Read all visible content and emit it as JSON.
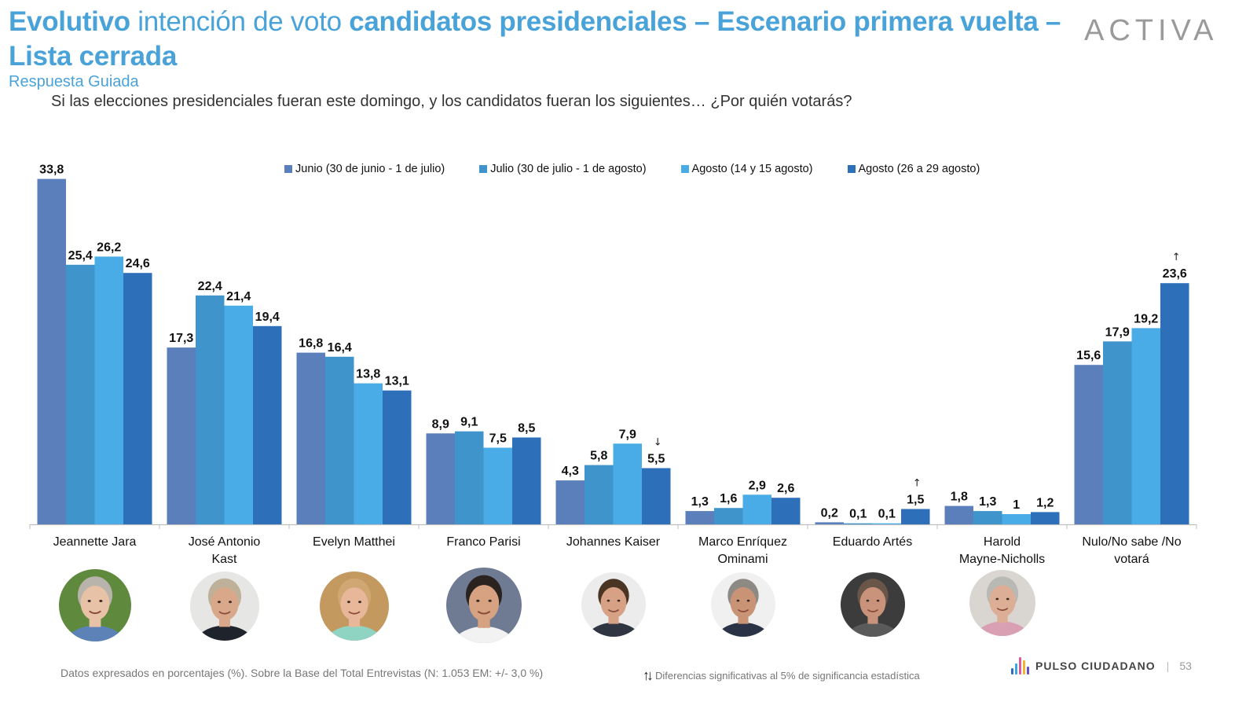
{
  "header": {
    "title_parts": [
      {
        "text": "Evolutivo",
        "bold": true
      },
      {
        "text": " intención de voto ",
        "bold": false
      },
      {
        "text": "candidatos presidenciales – Escenario primera vuelta – Lista cerrada",
        "bold": true
      }
    ],
    "subtitle": "Respuesta Guiada",
    "question": "Si las elecciones presidenciales fueran este domingo, y los candidatos fueran los siguientes… ¿Por quién votarás?",
    "logo": "ACTIVA"
  },
  "chart_data": {
    "type": "bar",
    "title": "Evolutivo intención de voto candidatos presidenciales – Escenario primera vuelta – Lista cerrada",
    "xlabel": "",
    "ylabel": "",
    "ylim": [
      0,
      34
    ],
    "grid": false,
    "legend_position": "top",
    "categories": [
      "Jeannette Jara",
      "José Antonio Kast",
      "Evelyn Matthei",
      "Franco Parisi",
      "Johannes Kaiser",
      "Marco Enríquez Ominami",
      "Eduardo Artés",
      "Harold Mayne-Nicholls",
      "Nulo/No sabe /No votará"
    ],
    "category_lines": [
      [
        "Jeannette Jara"
      ],
      [
        "José Antonio",
        "Kast"
      ],
      [
        "Evelyn Matthei"
      ],
      [
        "Franco Parisi"
      ],
      [
        "Johannes Kaiser"
      ],
      [
        "Marco Enríquez",
        "Ominami"
      ],
      [
        "Eduardo Artés"
      ],
      [
        "Harold",
        "Mayne-Nicholls"
      ],
      [
        "Nulo/No sabe /No",
        "votará"
      ]
    ],
    "series": [
      {
        "name": "Junio (30 de junio - 1 de julio)",
        "color": "#5a7fba",
        "values": [
          33.8,
          17.3,
          16.8,
          8.9,
          4.3,
          1.3,
          0.2,
          1.8,
          15.6
        ],
        "labels": [
          "33,8",
          "17,3",
          "16,8",
          "8,9",
          "4,3",
          "1,3",
          "0,2",
          "1,8",
          "15,6"
        ]
      },
      {
        "name": "Julio (30 de julio - 1 de agosto)",
        "color": "#3f94cc",
        "values": [
          25.4,
          22.4,
          16.4,
          9.1,
          5.8,
          1.6,
          0.1,
          1.3,
          17.9
        ],
        "labels": [
          "25,4",
          "22,4",
          "16,4",
          "9,1",
          "5,8",
          "1,6",
          "0,1",
          "1,3",
          "17,9"
        ]
      },
      {
        "name": "Agosto (14 y 15 agosto)",
        "color": "#4aace6",
        "values": [
          26.2,
          21.4,
          13.8,
          7.5,
          7.9,
          2.9,
          0.1,
          1.0,
          19.2
        ],
        "labels": [
          "26,2",
          "21,4",
          "13,8",
          "7,5",
          "7,9",
          "2,9",
          "0,1",
          "1",
          "19,2"
        ]
      },
      {
        "name": "Agosto (26 a 29 agosto)",
        "color": "#2e6fba",
        "values": [
          24.6,
          19.4,
          13.1,
          8.5,
          5.5,
          2.6,
          1.5,
          1.2,
          23.6
        ],
        "labels": [
          "24,6",
          "19,4",
          "13,1",
          "8,5",
          "5,5",
          "2,6",
          "1,5",
          "1,2",
          "23,6"
        ]
      }
    ],
    "significance_markers": [
      {
        "category": "Johannes Kaiser",
        "series": "Agosto (26 a 29 agosto)",
        "direction": "down",
        "glyph": "↓"
      },
      {
        "category": "Eduardo Artés",
        "series": "Agosto (26 a 29 agosto)",
        "direction": "up",
        "glyph": "↑"
      },
      {
        "category": "Nulo/No sabe /No votará",
        "series": "Agosto (26 a 29 agosto)",
        "direction": "up",
        "glyph": "↑"
      }
    ]
  },
  "avatars": [
    {
      "name": "Jeannette Jara",
      "bg": "#5f8a3e",
      "skin": "#e7c2a6",
      "hair": "#b9b4ab",
      "shirt": "#5c82b8"
    },
    {
      "name": "José Antonio Kast",
      "bg": "#e6e6e4",
      "skin": "#d9a88a",
      "hair": "#bfb199",
      "shirt": "#1f232c"
    },
    {
      "name": "Evelyn Matthei",
      "bg": "#c4995f",
      "skin": "#e8b79a",
      "hair": "#d0a673",
      "shirt": "#8fd4c3"
    },
    {
      "name": "Franco Parisi",
      "bg": "#6f7a93",
      "skin": "#d7a281",
      "hair": "#2a2320",
      "shirt": "#f2f2f2"
    },
    {
      "name": "Johannes Kaiser",
      "bg": "#ececec",
      "skin": "#d6a184",
      "hair": "#4a3424",
      "shirt": "#2f3642"
    },
    {
      "name": "Marco Enríquez Ominami",
      "bg": "#f0f0f0",
      "skin": "#c99476",
      "hair": "#8d8a86",
      "shirt": "#2a3346"
    },
    {
      "name": "Eduardo Artés",
      "bg": "#3c3c3c",
      "skin": "#c9937b",
      "hair": "#6a5648",
      "shirt": "#5a5a5a"
    },
    {
      "name": "Harold Mayne-Nicholls",
      "bg": "#d9d6d2",
      "skin": "#dcae95",
      "hair": "#b8b8b4",
      "shirt": "#d9a0b4"
    }
  ],
  "footer": {
    "note": "Datos expresados en porcentajes (%). Sobre la Base del Total Entrevistas (N: 1.053  EM: +/- 3,0 %)",
    "significance_glyph": "↑↓",
    "significance_note": "Diferencias  significativas  al 5% de significancia estadística",
    "brand": "PULSO CIUDADANO",
    "separator": "|",
    "page_number": "53",
    "brand_colors": [
      "#2f6fbf",
      "#3ba7e0",
      "#e05a9b",
      "#f2b233",
      "#6c4fbf"
    ]
  }
}
